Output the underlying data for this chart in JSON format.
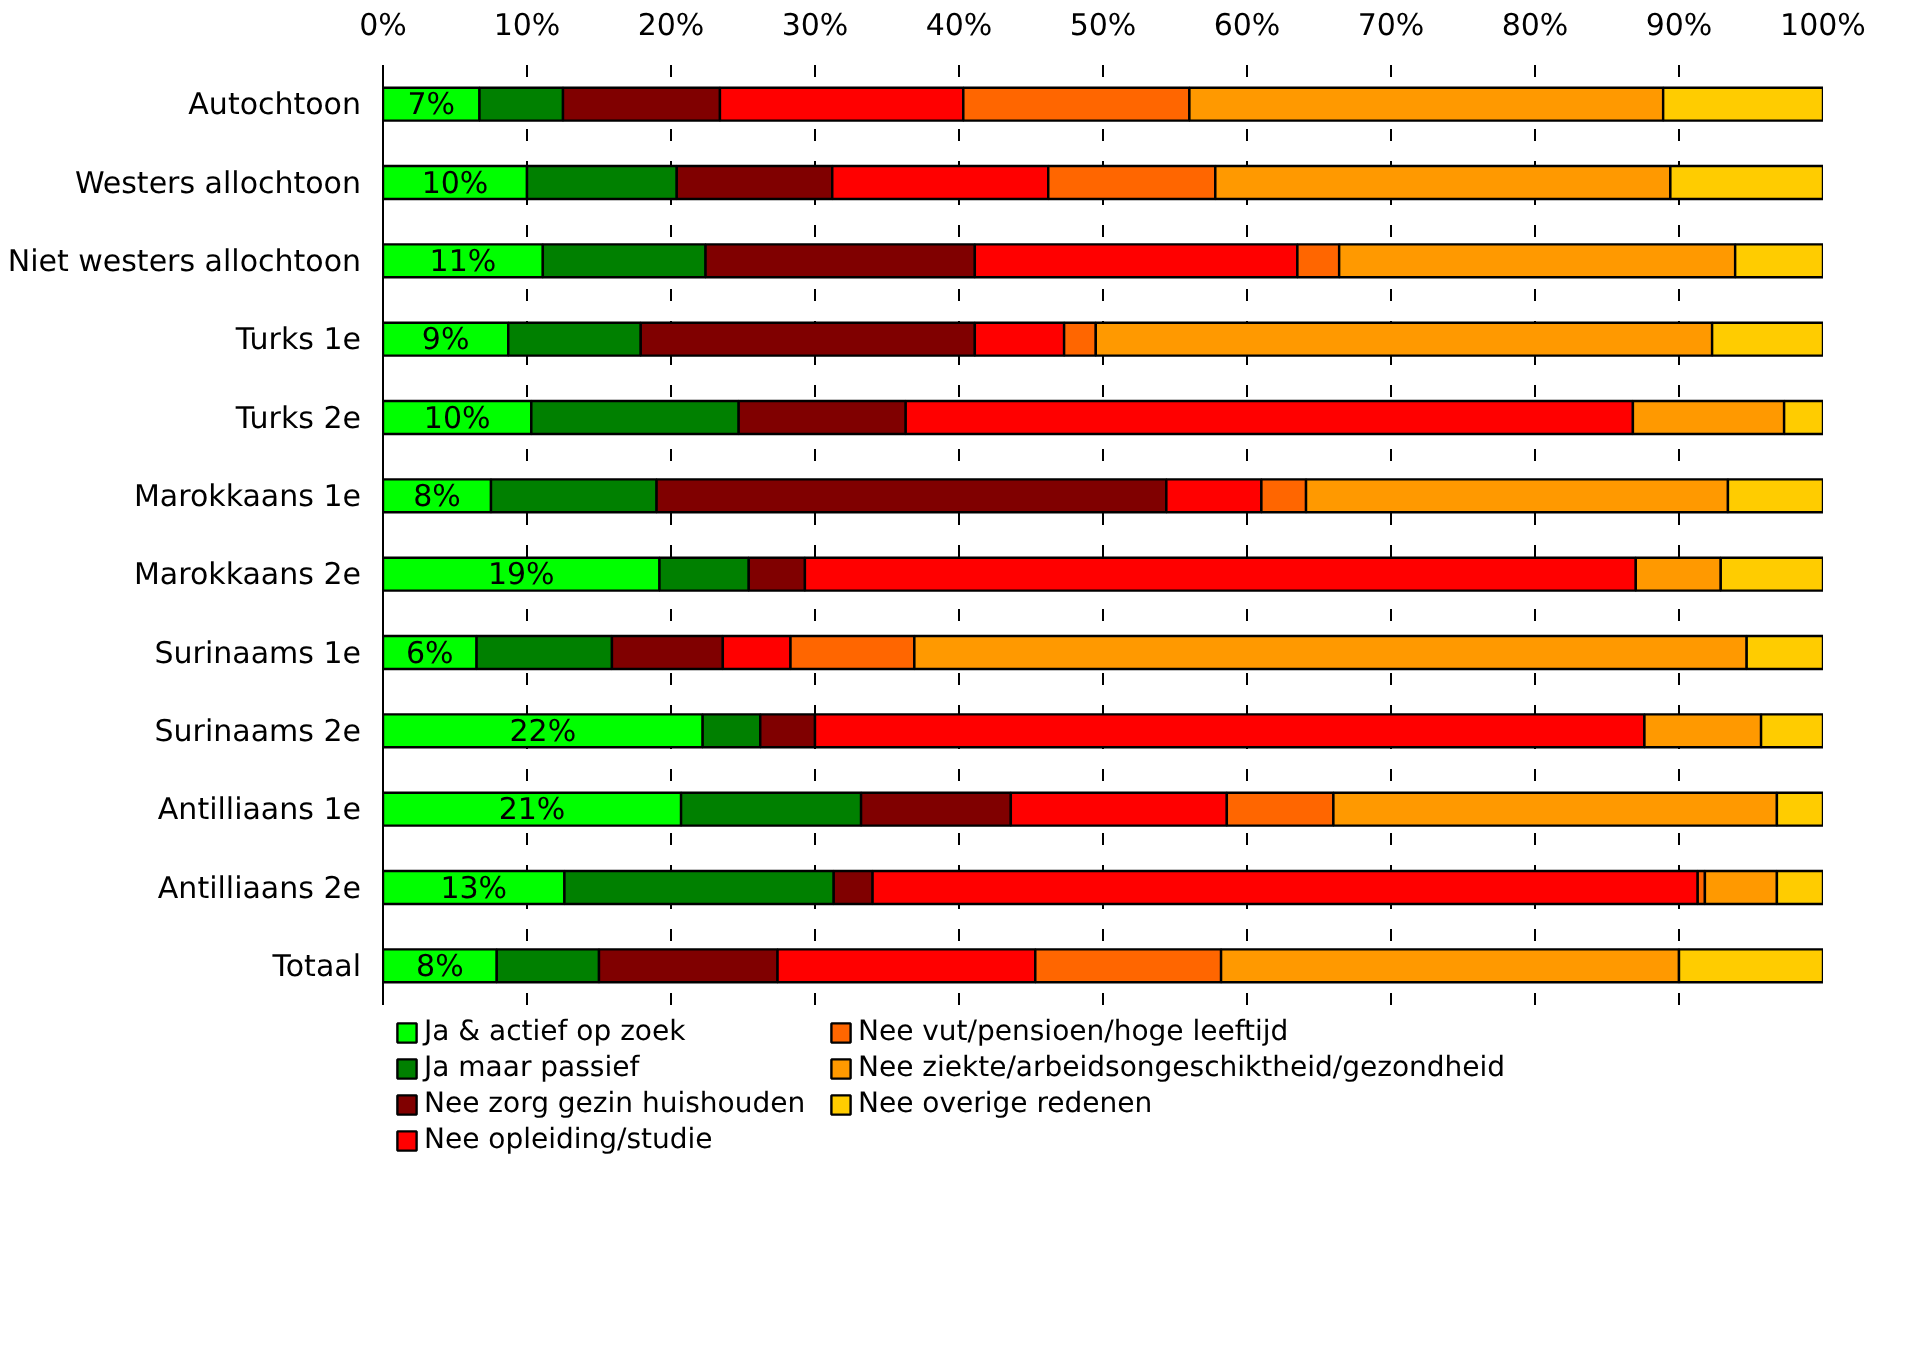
{
  "chart_data": {
    "type": "bar",
    "orientation": "horizontal",
    "stacked": true,
    "categories": [
      "Autochtoon",
      "Westers allochtoon",
      "Niet westers allochtoon",
      "Turks 1e",
      "Turks 2e",
      "Marokkaans 1e",
      "Marokkaans 2e",
      "Surinaams 1e",
      "Surinaams 2e",
      "Antilliaans 1e",
      "Antilliaans 2e",
      "Totaal"
    ],
    "series": [
      {
        "name": "Ja & actief op zoek",
        "color": "#00ff00",
        "values": [
          6.7,
          10.0,
          11.1,
          8.7,
          10.3,
          7.5,
          19.2,
          6.5,
          22.2,
          20.7,
          12.6,
          7.9
        ],
        "value_labels": [
          "7%",
          "10%",
          "11%",
          "9%",
          "10%",
          "8%",
          "19%",
          "6%",
          "22%",
          "21%",
          "13%",
          "8%"
        ]
      },
      {
        "name": "Ja maar passief",
        "color": "#008000",
        "values": [
          5.8,
          10.4,
          11.3,
          9.2,
          14.4,
          11.5,
          6.2,
          9.4,
          4.0,
          12.5,
          18.7,
          7.1
        ]
      },
      {
        "name": "Nee zorg gezin huishouden",
        "color": "#800000",
        "values": [
          10.9,
          10.8,
          18.7,
          23.2,
          11.6,
          35.4,
          3.9,
          7.7,
          3.8,
          10.4,
          2.7,
          12.4
        ]
      },
      {
        "name": "Nee opleiding/studie",
        "color": "#ff0000",
        "values": [
          16.9,
          15.0,
          22.4,
          6.2,
          50.5,
          6.6,
          57.7,
          4.7,
          57.6,
          15.0,
          57.3,
          17.9
        ]
      },
      {
        "name": "Nee vut/pensioen/hoge leeftijd",
        "color": "#ff6600",
        "values": [
          15.7,
          11.6,
          2.9,
          2.2,
          null,
          3.1,
          null,
          8.6,
          null,
          7.4,
          0.5,
          12.9
        ]
      },
      {
        "name": "Nee ziekte/arbeidsongeschiktheid/gezondheid",
        "color": "#ff9900",
        "values": [
          32.9,
          31.6,
          27.5,
          42.8,
          10.5,
          29.3,
          5.9,
          57.8,
          8.1,
          30.8,
          5.0,
          31.8
        ]
      },
      {
        "name": "Nee overige redenen",
        "color": "#ffcc00",
        "values": [
          11.1,
          10.6,
          6.1,
          7.7,
          2.7,
          6.6,
          7.1,
          5.3,
          4.3,
          3.2,
          3.2,
          10.0
        ]
      }
    ],
    "xlim": [
      0,
      100
    ],
    "xticks": [
      {
        "value": 0,
        "label": "0%"
      },
      {
        "value": 10,
        "label": "10%"
      },
      {
        "value": 20,
        "label": "20%"
      },
      {
        "value": 30,
        "label": "30%"
      },
      {
        "value": 40,
        "label": "40%"
      },
      {
        "value": 50,
        "label": "50%"
      },
      {
        "value": 60,
        "label": "60%"
      },
      {
        "value": 70,
        "label": "70%"
      },
      {
        "value": 80,
        "label": "80%"
      },
      {
        "value": 90,
        "label": "90%"
      },
      {
        "value": 100,
        "label": "100%"
      }
    ],
    "grid": "x",
    "legend": "bottom"
  }
}
